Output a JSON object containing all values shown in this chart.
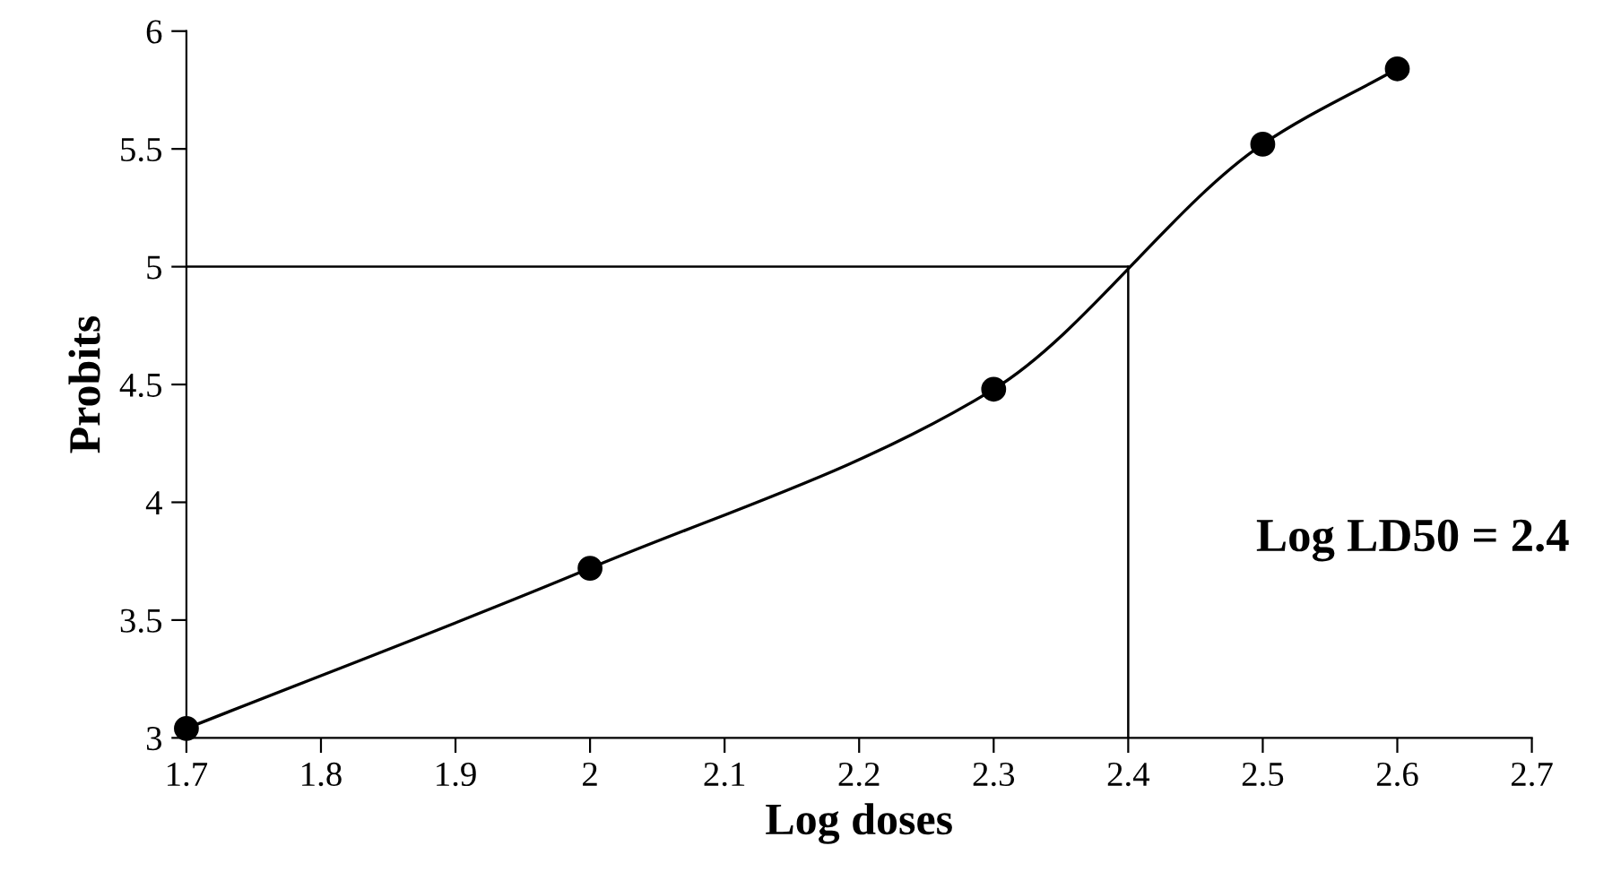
{
  "chart_data": {
    "type": "line",
    "xlabel": "Log doses",
    "ylabel": "Probits",
    "x": [
      1.7,
      2.0,
      2.3,
      2.5,
      2.6
    ],
    "series": [
      {
        "color": "#000000",
        "values": [
          3.04,
          3.72,
          4.48,
          5.52,
          5.84
        ]
      }
    ],
    "marker": "circle",
    "line_style": "solid",
    "xlim": [
      1.7,
      2.7
    ],
    "xticks": [
      1.7,
      1.8,
      1.9,
      2,
      2.1,
      2.2,
      2.3,
      2.4,
      2.5,
      2.6,
      2.7
    ],
    "ylim": [
      3,
      6
    ],
    "yticks": [
      3,
      3.5,
      4,
      4.5,
      5,
      5.5,
      6
    ],
    "ref_lines": [
      {
        "axis": "y",
        "value": 5,
        "color": "#000000"
      },
      {
        "axis": "x",
        "value": 2.4,
        "color": "#000000"
      }
    ],
    "annotations": [
      "Log LD50 = 2.4"
    ],
    "grid": false,
    "legend": false
  }
}
